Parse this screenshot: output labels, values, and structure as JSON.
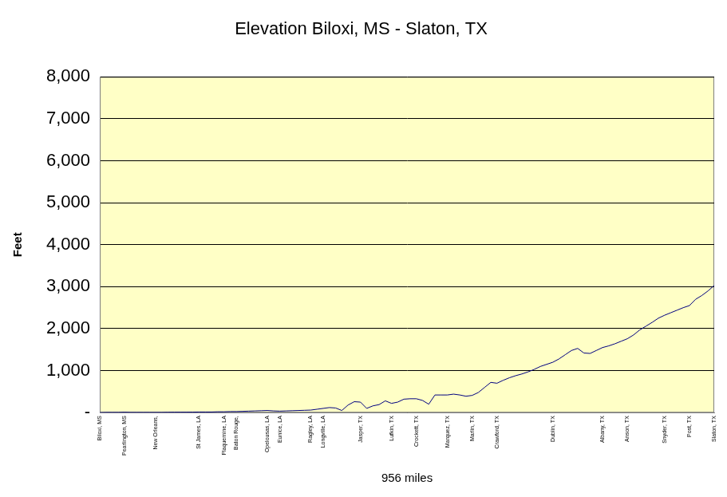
{
  "chart_data": {
    "type": "line",
    "title": "Elevation Biloxi, MS - Slaton, TX",
    "x_label": "956 miles",
    "y_label": "Feet",
    "categories": [
      "Biloxi, MS",
      null,
      null,
      null,
      "Pearlington, MS",
      null,
      null,
      null,
      null,
      "New Orleans,",
      null,
      null,
      null,
      null,
      null,
      null,
      "St James, LA",
      null,
      null,
      null,
      "Plaquemine, LA",
      null,
      "Baton Rouge,",
      null,
      null,
      null,
      null,
      "Opelousas, LA",
      null,
      "Eunice, LA",
      null,
      null,
      null,
      null,
      "Ragley, LA",
      null,
      "Longville, LA",
      null,
      null,
      null,
      null,
      null,
      "Jasper, TX",
      null,
      null,
      null,
      null,
      "Lufkin, TX",
      null,
      null,
      null,
      "Crockett, TX",
      null,
      null,
      null,
      null,
      "Marquez, TX",
      null,
      null,
      null,
      "Marlin, TX",
      null,
      null,
      null,
      "Crawford, TX",
      null,
      null,
      null,
      null,
      null,
      null,
      null,
      null,
      "Dublin, TX",
      null,
      null,
      null,
      null,
      null,
      null,
      null,
      "Albany, TX",
      null,
      null,
      null,
      "Anson, TX",
      null,
      null,
      null,
      null,
      null,
      "Snyder, TX",
      null,
      null,
      null,
      "Post, TX",
      null,
      null,
      null,
      "Slaton, TX"
    ],
    "values": [
      0,
      5,
      5,
      5,
      10,
      5,
      5,
      5,
      5,
      5,
      5,
      8,
      10,
      10,
      10,
      12,
      15,
      15,
      15,
      20,
      20,
      25,
      25,
      30,
      35,
      40,
      45,
      50,
      40,
      35,
      40,
      45,
      50,
      55,
      60,
      80,
      100,
      120,
      110,
      50,
      180,
      260,
      250,
      100,
      160,
      190,
      280,
      220,
      250,
      320,
      330,
      330,
      290,
      200,
      420,
      420,
      420,
      440,
      420,
      390,
      410,
      480,
      600,
      720,
      700,
      770,
      830,
      880,
      920,
      970,
      1030,
      1100,
      1150,
      1200,
      1280,
      1380,
      1480,
      1530,
      1420,
      1410,
      1480,
      1550,
      1590,
      1640,
      1700,
      1760,
      1850,
      1970,
      2060,
      2150,
      2250,
      2320,
      2380,
      2440,
      2500,
      2550,
      2700,
      2790,
      2900,
      3030
    ],
    "color": "#000080",
    "ylim": [
      0,
      8000
    ],
    "yticks": [
      {
        "value": 0,
        "label": "-"
      },
      {
        "value": 1000,
        "label": "1,000"
      },
      {
        "value": 2000,
        "label": "2,000"
      },
      {
        "value": 3000,
        "label": "3,000"
      },
      {
        "value": 4000,
        "label": "4,000"
      },
      {
        "value": 5000,
        "label": "5,000"
      },
      {
        "value": 6000,
        "label": "6,000"
      },
      {
        "value": 7000,
        "label": "7,000"
      },
      {
        "value": 8000,
        "label": "8,000"
      }
    ],
    "grid": true
  }
}
